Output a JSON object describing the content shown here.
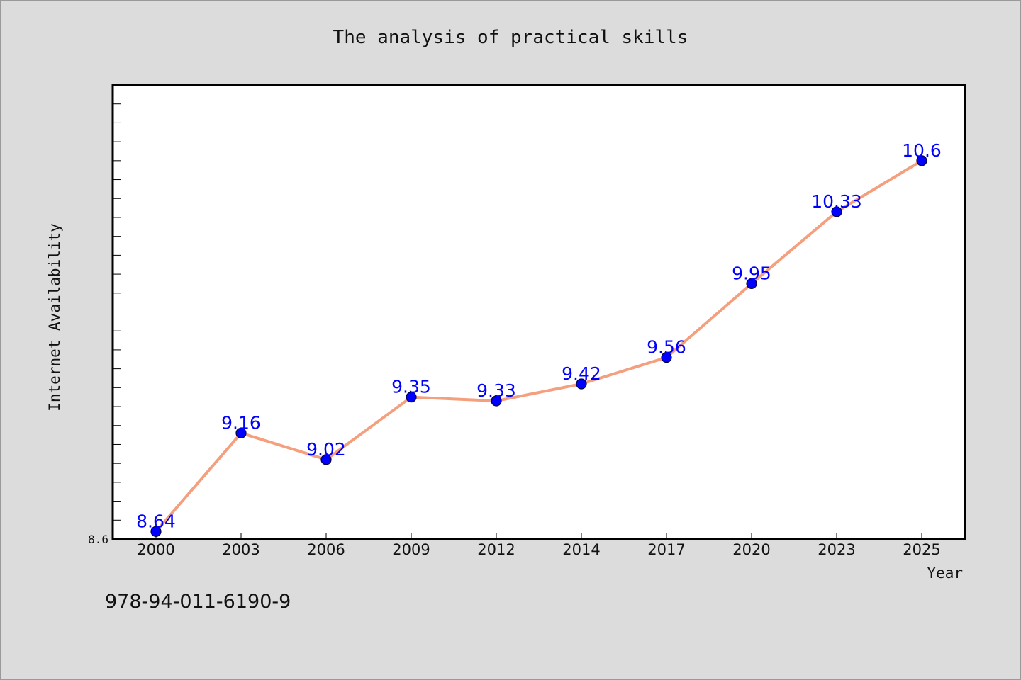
{
  "chart_data": {
    "type": "line",
    "title": "The analysis of practical skills",
    "xlabel": "Year",
    "ylabel": "Internet Availability",
    "categories": [
      "2000",
      "2003",
      "2006",
      "2009",
      "2012",
      "2014",
      "2017",
      "2020",
      "2023",
      "2025"
    ],
    "series": [
      {
        "values": [
          8.64,
          9.16,
          9.02,
          9.35,
          9.33,
          9.42,
          9.56,
          9.95,
          10.33,
          10.6
        ]
      }
    ],
    "data_labels": [
      "8.64",
      "9.16",
      "9.02",
      "9.35",
      "9.33",
      "9.42",
      "9.56",
      "9.95",
      "10.33",
      "10.6"
    ],
    "ylim": [
      8.6,
      11.0
    ],
    "y_tick_labels": [
      "8.6"
    ],
    "grid": false,
    "line_color": "#f4a07f",
    "marker_color": "#0000ff",
    "label_color": "#0000ff"
  },
  "footer": {
    "code": "978-94-011-6190-9"
  }
}
